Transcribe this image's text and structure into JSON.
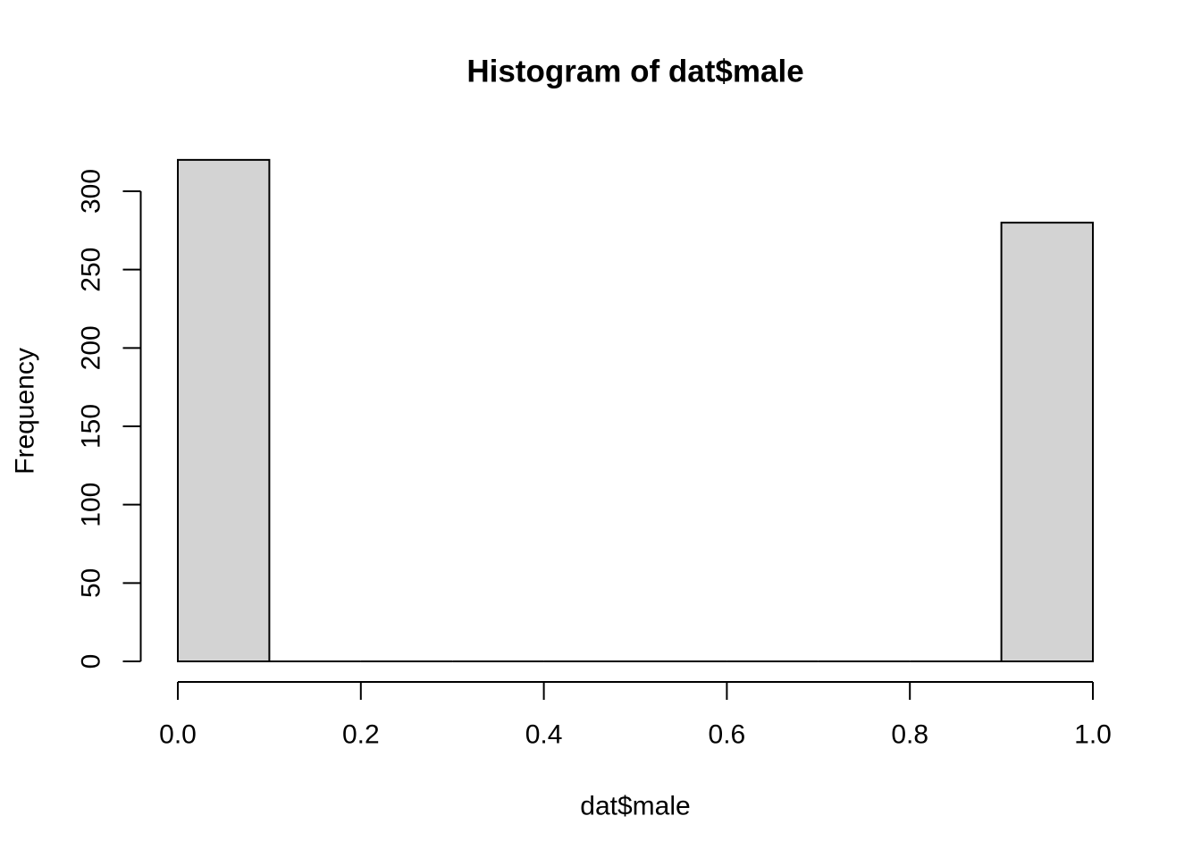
{
  "chart_data": {
    "type": "bar",
    "variant": "histogram",
    "title": "Histogram of dat$male",
    "xlabel": "dat$male",
    "ylabel": "Frequency",
    "breaks": [
      0.0,
      0.1,
      0.2,
      0.3,
      0.4,
      0.5,
      0.6,
      0.7,
      0.8,
      0.9,
      1.0
    ],
    "counts": [
      320,
      0,
      0,
      0,
      0,
      0,
      0,
      0,
      0,
      280
    ],
    "xlim": [
      0.0,
      1.0
    ],
    "ylim": [
      0,
      320
    ],
    "x_ticks": [
      {
        "value": 0.0,
        "label": "0.0"
      },
      {
        "value": 0.2,
        "label": "0.2"
      },
      {
        "value": 0.4,
        "label": "0.4"
      },
      {
        "value": 0.6,
        "label": "0.6"
      },
      {
        "value": 0.8,
        "label": "0.8"
      },
      {
        "value": 1.0,
        "label": "1.0"
      }
    ],
    "y_ticks": [
      {
        "value": 0,
        "label": "0"
      },
      {
        "value": 50,
        "label": "50"
      },
      {
        "value": 100,
        "label": "100"
      },
      {
        "value": 150,
        "label": "150"
      },
      {
        "value": 200,
        "label": "200"
      },
      {
        "value": 250,
        "label": "250"
      },
      {
        "value": 300,
        "label": "300"
      }
    ],
    "grid": false,
    "legend": null,
    "colors": {
      "bar_fill": "#d3d3d3",
      "bar_stroke": "#000000",
      "axis": "#000000",
      "text": "#000000",
      "background": "#ffffff"
    }
  }
}
